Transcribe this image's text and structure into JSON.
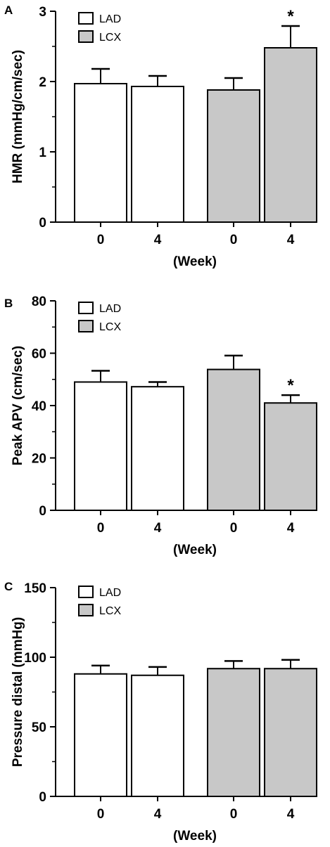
{
  "chart_data": [
    {
      "panel": "A",
      "type": "bar",
      "categories": [
        "0",
        "4",
        "0",
        "4"
      ],
      "series_of_bar": [
        "LAD",
        "LAD",
        "LCX",
        "LCX"
      ],
      "values": [
        1.97,
        1.93,
        1.88,
        2.48
      ],
      "error": [
        0.21,
        0.15,
        0.17,
        0.31
      ],
      "ylabel": "HMR (mmHg/cm/sec)",
      "xlabel": "(Week)",
      "ylim": [
        0,
        3
      ],
      "yticks": [
        "0",
        "1",
        "2",
        "3"
      ],
      "legend": [
        {
          "label": "LAD",
          "color": "#ffffff"
        },
        {
          "label": "LCX",
          "color": "#c8c8c8"
        }
      ],
      "annotations": [
        {
          "bar": 3,
          "text": "*"
        }
      ]
    },
    {
      "panel": "B",
      "type": "bar",
      "categories": [
        "0",
        "4",
        "0",
        "4"
      ],
      "series_of_bar": [
        "LAD",
        "LAD",
        "LCX",
        "LCX"
      ],
      "values": [
        49.0,
        47.2,
        53.8,
        41.0
      ],
      "error": [
        4.3,
        1.8,
        5.3,
        3.0
      ],
      "ylabel": "Peak APV (cm/sec)",
      "xlabel": "(Week)",
      "ylim": [
        0,
        80
      ],
      "yticks": [
        "0",
        "20",
        "40",
        "60",
        "80"
      ],
      "legend": [
        {
          "label": "LAD",
          "color": "#ffffff"
        },
        {
          "label": "LCX",
          "color": "#c8c8c8"
        }
      ],
      "annotations": [
        {
          "bar": 3,
          "text": "*"
        }
      ]
    },
    {
      "panel": "C",
      "type": "bar",
      "categories": [
        "0",
        "4",
        "0",
        "4"
      ],
      "series_of_bar": [
        "LAD",
        "LAD",
        "LCX",
        "LCX"
      ],
      "values": [
        88.0,
        87.0,
        91.8,
        91.8
      ],
      "error": [
        6.0,
        6.0,
        5.5,
        6.3
      ],
      "ylabel": "Pressure distal (mmHg)",
      "xlabel": "(Week)",
      "ylim": [
        0,
        150
      ],
      "yticks": [
        "0",
        "50",
        "100",
        "150"
      ],
      "legend": [
        {
          "label": "LAD",
          "color": "#ffffff"
        },
        {
          "label": "LCX",
          "color": "#c8c8c8"
        }
      ],
      "annotations": []
    }
  ]
}
